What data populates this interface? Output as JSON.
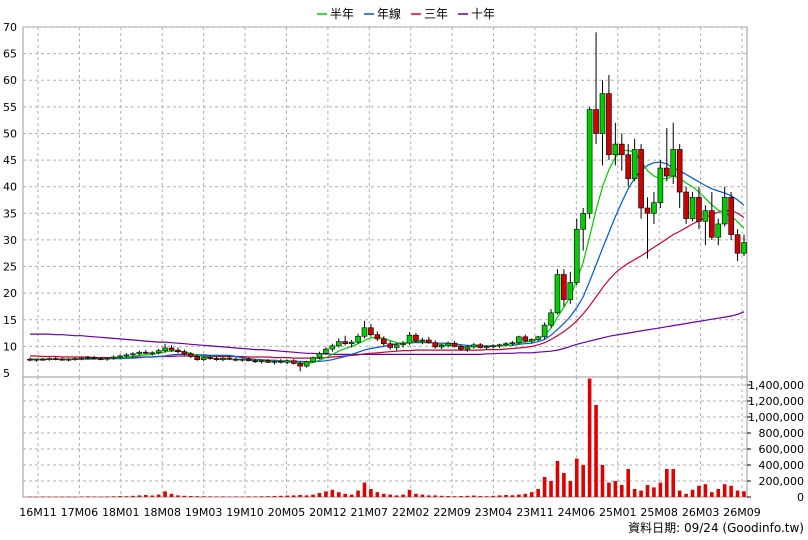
{
  "legend": [
    {
      "label": "半年",
      "color": "#00cc00"
    },
    {
      "label": "年線",
      "color": "#0055dd"
    },
    {
      "label": "三年",
      "color": "#cc0033"
    },
    {
      "label": "十年",
      "color": "#6600aa"
    }
  ],
  "footer": "資料日期: 09/24 (Goodinfo.tw)",
  "chart_data": [
    {
      "type": "candlestick",
      "ylim": [
        5,
        70
      ],
      "y_ticks": [
        5,
        10,
        15,
        20,
        25,
        30,
        35,
        40,
        45,
        50,
        55,
        60,
        65,
        70
      ],
      "x_ticks": [
        "16M11",
        "17M06",
        "18M01",
        "18M08",
        "19M03",
        "19M10",
        "20M05",
        "20M12",
        "21M07",
        "22M02",
        "22M09",
        "23M04",
        "23M11",
        "24M06",
        "25M01",
        "25M08",
        "26M03",
        "26M09"
      ],
      "grid": true,
      "legend_position": "top-center",
      "up_color": "#00cc00",
      "down_color": "#cc0000",
      "candles": [
        [
          7.6,
          7.9,
          7.2,
          7.4
        ],
        [
          7.4,
          7.7,
          7.1,
          7.6
        ],
        [
          7.6,
          7.8,
          7.3,
          7.5
        ],
        [
          7.5,
          7.9,
          7.3,
          7.7
        ],
        [
          7.7,
          8.0,
          7.4,
          7.6
        ],
        [
          7.6,
          7.9,
          7.3,
          7.5
        ],
        [
          7.5,
          7.8,
          7.2,
          7.6
        ],
        [
          7.6,
          7.9,
          7.3,
          7.7
        ],
        [
          7.7,
          8.0,
          7.4,
          7.8
        ],
        [
          7.8,
          8.2,
          7.5,
          7.9
        ],
        [
          7.9,
          8.2,
          7.6,
          7.7
        ],
        [
          7.7,
          8.0,
          7.4,
          7.6
        ],
        [
          7.6,
          8.0,
          7.3,
          7.8
        ],
        [
          7.8,
          8.3,
          7.5,
          8.0
        ],
        [
          8.0,
          8.5,
          7.7,
          8.2
        ],
        [
          8.2,
          8.7,
          7.9,
          8.4
        ],
        [
          8.4,
          8.9,
          8.0,
          8.6
        ],
        [
          8.6,
          9.2,
          8.3,
          8.9
        ],
        [
          8.9,
          9.3,
          8.5,
          8.7
        ],
        [
          8.7,
          9.1,
          8.3,
          8.8
        ],
        [
          8.8,
          9.5,
          8.5,
          9.2
        ],
        [
          9.2,
          10.5,
          8.8,
          9.7
        ],
        [
          9.7,
          10.2,
          9.0,
          9.3
        ],
        [
          9.3,
          9.8,
          8.7,
          9.0
        ],
        [
          9.0,
          9.4,
          8.3,
          8.6
        ],
        [
          8.6,
          8.9,
          7.8,
          8.1
        ],
        [
          8.1,
          8.5,
          7.3,
          7.5
        ],
        [
          7.5,
          8.1,
          7.2,
          7.9
        ],
        [
          7.9,
          8.3,
          7.5,
          7.7
        ],
        [
          7.7,
          8.1,
          7.3,
          7.5
        ],
        [
          7.5,
          8.0,
          7.2,
          7.8
        ],
        [
          7.8,
          8.2,
          7.4,
          7.6
        ],
        [
          7.6,
          7.9,
          7.2,
          7.4
        ],
        [
          7.4,
          7.8,
          7.1,
          7.6
        ],
        [
          7.6,
          7.9,
          7.2,
          7.3
        ],
        [
          7.3,
          7.6,
          6.9,
          7.1
        ],
        [
          7.1,
          7.5,
          6.8,
          7.3
        ],
        [
          7.3,
          7.6,
          6.9,
          7.0
        ],
        [
          7.0,
          7.4,
          6.6,
          7.2
        ],
        [
          7.2,
          7.6,
          6.8,
          7.0
        ],
        [
          7.0,
          7.5,
          6.7,
          7.3
        ],
        [
          7.3,
          7.6,
          6.6,
          6.8
        ],
        [
          6.8,
          7.1,
          5.3,
          6.3
        ],
        [
          6.3,
          7.3,
          6.0,
          7.1
        ],
        [
          7.1,
          8.1,
          6.9,
          7.9
        ],
        [
          7.9,
          9.0,
          7.6,
          8.7
        ],
        [
          8.7,
          9.8,
          8.4,
          9.5
        ],
        [
          9.5,
          10.5,
          9.0,
          10.1
        ],
        [
          10.1,
          11.5,
          9.8,
          10.9
        ],
        [
          10.9,
          12.0,
          10.2,
          10.5
        ],
        [
          10.5,
          11.2,
          9.8,
          10.8
        ],
        [
          10.8,
          12.4,
          10.5,
          11.9
        ],
        [
          11.9,
          14.8,
          11.5,
          13.5
        ],
        [
          13.5,
          14.2,
          11.8,
          12.2
        ],
        [
          12.2,
          12.8,
          11.0,
          11.4
        ],
        [
          11.4,
          11.9,
          10.1,
          10.5
        ],
        [
          10.5,
          11.0,
          9.4,
          9.8
        ],
        [
          9.8,
          10.6,
          9.2,
          10.3
        ],
        [
          10.3,
          11.0,
          9.8,
          10.6
        ],
        [
          10.6,
          12.7,
          10.3,
          12.1
        ],
        [
          12.1,
          12.5,
          10.7,
          11.0
        ],
        [
          11.0,
          11.6,
          10.4,
          11.2
        ],
        [
          11.2,
          11.8,
          10.5,
          10.7
        ],
        [
          10.7,
          11.1,
          9.6,
          9.9
        ],
        [
          9.9,
          10.5,
          9.5,
          10.2
        ],
        [
          10.2,
          10.9,
          9.8,
          10.6
        ],
        [
          10.6,
          11.0,
          9.8,
          10.0
        ],
        [
          10.0,
          10.4,
          9.2,
          9.5
        ],
        [
          9.5,
          10.2,
          9.0,
          9.9
        ],
        [
          9.9,
          10.6,
          9.6,
          10.3
        ],
        [
          10.3,
          10.6,
          9.6,
          9.8
        ],
        [
          9.8,
          10.2,
          9.4,
          10.0
        ],
        [
          10.0,
          10.4,
          9.6,
          10.1
        ],
        [
          10.1,
          10.5,
          9.7,
          10.3
        ],
        [
          10.3,
          10.8,
          10.0,
          10.5
        ],
        [
          10.5,
          11.0,
          10.1,
          10.7
        ],
        [
          10.7,
          12.0,
          10.4,
          11.8
        ],
        [
          11.8,
          12.2,
          10.8,
          11.0
        ],
        [
          11.0,
          11.5,
          10.6,
          11.3
        ],
        [
          11.3,
          12.0,
          11.0,
          11.8
        ],
        [
          11.8,
          14.5,
          11.4,
          14.0
        ],
        [
          14.0,
          17.0,
          13.5,
          16.3
        ],
        [
          16.3,
          24.5,
          16.0,
          23.5
        ],
        [
          23.5,
          24.5,
          17.5,
          18.8
        ],
        [
          18.8,
          24.0,
          18.0,
          22.0
        ],
        [
          22.0,
          34.0,
          21.5,
          32.0
        ],
        [
          32.0,
          36.0,
          28.0,
          35.0
        ],
        [
          35.0,
          55.0,
          34.0,
          54.5
        ],
        [
          54.5,
          69.0,
          48.0,
          50.0
        ],
        [
          50.0,
          60.0,
          44.0,
          57.5
        ],
        [
          57.5,
          61.0,
          45.0,
          46.0
        ],
        [
          46.0,
          52.0,
          44.0,
          48.0
        ],
        [
          48.0,
          50.0,
          43.0,
          46.0
        ],
        [
          46.0,
          48.0,
          40.0,
          41.5
        ],
        [
          41.5,
          49.0,
          41.0,
          47.0
        ],
        [
          47.0,
          48.0,
          34.0,
          36.0
        ],
        [
          36.0,
          38.0,
          26.5,
          35.0
        ],
        [
          35.0,
          39.0,
          33.0,
          37.0
        ],
        [
          37.0,
          45.0,
          36.0,
          43.5
        ],
        [
          43.5,
          51.0,
          41.0,
          42.0
        ],
        [
          42.0,
          52.0,
          40.5,
          47.0
        ],
        [
          47.0,
          48.0,
          36.0,
          39.0
        ],
        [
          39.0,
          40.0,
          33.0,
          34.0
        ],
        [
          34.0,
          39.0,
          33.5,
          38.0
        ],
        [
          38.0,
          40.0,
          32.0,
          33.5
        ],
        [
          33.5,
          36.5,
          29.0,
          35.5
        ],
        [
          35.5,
          39.0,
          30.0,
          30.5
        ],
        [
          30.5,
          34.0,
          29.0,
          33.0
        ],
        [
          33.0,
          40.0,
          32.5,
          38.0
        ],
        [
          38.0,
          39.0,
          30.0,
          31.0
        ],
        [
          31.0,
          32.0,
          26.0,
          27.5
        ],
        [
          27.5,
          31.0,
          27.0,
          29.5
        ]
      ],
      "volume_ylim": [
        0,
        1500000
      ],
      "volume_ticks": [
        0,
        200000,
        400000,
        600000,
        800000,
        1000000,
        1200000,
        1400000
      ],
      "volume_tick_labels": [
        "0",
        "200,000",
        "400,000",
        "600,000",
        "800,000",
        "1,000,000",
        "1,200,000",
        "1,400,000"
      ],
      "volume": [
        5000,
        4000,
        6000,
        5000,
        4000,
        5000,
        6000,
        4000,
        5000,
        8000,
        6000,
        5000,
        7000,
        9000,
        12000,
        10000,
        15000,
        20000,
        25000,
        18000,
        30000,
        70000,
        40000,
        20000,
        15000,
        12000,
        10000,
        9000,
        8000,
        7000,
        8000,
        6000,
        7000,
        6000,
        8000,
        7000,
        9000,
        10000,
        12000,
        15000,
        18000,
        20000,
        25000,
        20000,
        30000,
        50000,
        70000,
        90000,
        60000,
        40000,
        30000,
        80000,
        180000,
        100000,
        60000,
        40000,
        30000,
        20000,
        30000,
        90000,
        40000,
        30000,
        20000,
        20000,
        15000,
        12000,
        10000,
        12000,
        15000,
        18000,
        12000,
        10000,
        15000,
        20000,
        25000,
        22000,
        30000,
        40000,
        60000,
        100000,
        250000,
        200000,
        450000,
        300000,
        200000,
        480000,
        400000,
        1480000,
        1150000,
        400000,
        180000,
        200000,
        150000,
        350000,
        100000,
        80000,
        150000,
        120000,
        180000,
        350000,
        350000,
        80000,
        40000,
        90000,
        140000,
        160000,
        60000,
        100000,
        160000,
        140000,
        80000,
        70000
      ],
      "ma_half_year": [
        7.6,
        7.6,
        7.6,
        7.6,
        7.6,
        7.6,
        7.6,
        7.6,
        7.7,
        7.7,
        7.7,
        7.7,
        7.7,
        7.8,
        7.9,
        8.0,
        8.1,
        8.3,
        8.4,
        8.5,
        8.7,
        9.0,
        9.1,
        9.1,
        9.0,
        8.7,
        8.3,
        8.1,
        7.9,
        7.7,
        7.6,
        7.6,
        7.6,
        7.5,
        7.5,
        7.4,
        7.3,
        7.3,
        7.2,
        7.2,
        7.2,
        7.1,
        6.9,
        6.8,
        7.0,
        7.4,
        7.9,
        8.5,
        9.1,
        9.6,
        10.0,
        10.5,
        11.1,
        11.6,
        11.7,
        11.5,
        11.1,
        10.7,
        10.6,
        10.8,
        10.9,
        10.9,
        10.8,
        10.5,
        10.3,
        10.2,
        10.2,
        10.0,
        9.9,
        10.0,
        10.0,
        10.0,
        10.0,
        10.1,
        10.2,
        10.3,
        10.6,
        10.8,
        11.0,
        11.4,
        12.1,
        13.4,
        15.5,
        17.4,
        19.3,
        22.5,
        25.8,
        30.6,
        35.6,
        40.0,
        43.2,
        45.5,
        46.8,
        46.8,
        46.5,
        44.8,
        43.0,
        42.0,
        41.5,
        41.5,
        42.0,
        41.6,
        40.7,
        40.0,
        39.0,
        37.8,
        36.6,
        35.6,
        35.0,
        34.5,
        33.4,
        32.2
      ],
      "ma_year": [
        7.6,
        7.6,
        7.6,
        7.6,
        7.6,
        7.6,
        7.6,
        7.6,
        7.6,
        7.6,
        7.6,
        7.7,
        7.7,
        7.7,
        7.7,
        7.8,
        7.8,
        7.9,
        8.0,
        8.0,
        8.1,
        8.2,
        8.4,
        8.5,
        8.5,
        8.5,
        8.4,
        8.4,
        8.3,
        8.3,
        8.3,
        8.3,
        8.1,
        7.9,
        7.7,
        7.6,
        7.5,
        7.4,
        7.4,
        7.3,
        7.3,
        7.2,
        7.2,
        7.1,
        7.1,
        7.2,
        7.3,
        7.5,
        7.8,
        8.1,
        8.5,
        8.9,
        9.3,
        9.6,
        9.8,
        10.0,
        10.3,
        10.5,
        10.6,
        10.7,
        10.7,
        10.7,
        10.7,
        10.6,
        10.6,
        10.6,
        10.5,
        10.3,
        10.2,
        10.1,
        10.1,
        10.1,
        10.1,
        10.1,
        10.2,
        10.2,
        10.4,
        10.5,
        10.6,
        10.9,
        11.3,
        12.1,
        13.2,
        14.3,
        15.6,
        17.3,
        19.3,
        22.2,
        25.3,
        28.4,
        31.4,
        34.4,
        37.1,
        39.6,
        41.6,
        43.0,
        44.0,
        44.5,
        44.6,
        44.3,
        43.5,
        43.0,
        42.3,
        41.6,
        40.9,
        40.2,
        39.6,
        39.2,
        38.8,
        38.3,
        37.5,
        36.5
      ],
      "ma_three_year": [
        8.2,
        8.2,
        8.1,
        8.1,
        8.1,
        8.0,
        8.0,
        8.0,
        8.0,
        8.0,
        7.9,
        7.9,
        7.9,
        7.9,
        7.9,
        7.9,
        8.0,
        8.0,
        8.0,
        8.0,
        8.1,
        8.1,
        8.1,
        8.2,
        8.2,
        8.2,
        8.2,
        8.2,
        8.2,
        8.1,
        8.1,
        8.1,
        8.1,
        8.1,
        8.0,
        8.0,
        8.0,
        8.0,
        7.9,
        7.9,
        7.9,
        7.8,
        7.8,
        7.8,
        7.8,
        7.8,
        7.9,
        8.0,
        8.1,
        8.2,
        8.3,
        8.4,
        8.6,
        8.7,
        8.8,
        8.9,
        9.0,
        9.1,
        9.2,
        9.2,
        9.3,
        9.3,
        9.3,
        9.3,
        9.3,
        9.3,
        9.3,
        9.3,
        9.3,
        9.3,
        9.3,
        9.4,
        9.4,
        9.4,
        9.5,
        9.6,
        9.7,
        9.8,
        10.0,
        10.3,
        10.7,
        11.3,
        12.0,
        12.8,
        13.7,
        14.8,
        16.1,
        17.6,
        19.3,
        21.0,
        22.5,
        23.8,
        24.8,
        25.6,
        26.3,
        27.0,
        27.8,
        28.6,
        29.4,
        30.2,
        31.0,
        31.6,
        32.3,
        33.0,
        33.6,
        34.2,
        34.8,
        35.2,
        35.5,
        35.5,
        35.0,
        34.2
      ],
      "ma_ten_year": [
        12.3,
        12.3,
        12.3,
        12.3,
        12.2,
        12.2,
        12.1,
        12.0,
        12.0,
        11.9,
        11.8,
        11.7,
        11.6,
        11.5,
        11.4,
        11.3,
        11.2,
        11.1,
        11.0,
        10.9,
        10.8,
        10.8,
        10.7,
        10.6,
        10.5,
        10.4,
        10.3,
        10.2,
        10.1,
        10.0,
        9.9,
        9.8,
        9.7,
        9.6,
        9.5,
        9.4,
        9.4,
        9.3,
        9.2,
        9.1,
        9.0,
        8.9,
        8.8,
        8.7,
        8.7,
        8.6,
        8.6,
        8.5,
        8.5,
        8.5,
        8.5,
        8.5,
        8.5,
        8.5,
        8.5,
        8.5,
        8.5,
        8.5,
        8.5,
        8.5,
        8.5,
        8.5,
        8.5,
        8.5,
        8.5,
        8.5,
        8.5,
        8.5,
        8.5,
        8.5,
        8.5,
        8.6,
        8.6,
        8.7,
        8.7,
        8.7,
        8.8,
        8.8,
        8.8,
        8.9,
        9.0,
        9.1,
        9.3,
        9.6,
        10.0,
        10.4,
        10.7,
        11.0,
        11.3,
        11.6,
        11.9,
        12.1,
        12.3,
        12.5,
        12.7,
        12.9,
        13.1,
        13.3,
        13.5,
        13.7,
        13.9,
        14.1,
        14.3,
        14.5,
        14.7,
        14.9,
        15.1,
        15.3,
        15.5,
        15.7,
        16.0,
        16.5
      ]
    }
  ]
}
